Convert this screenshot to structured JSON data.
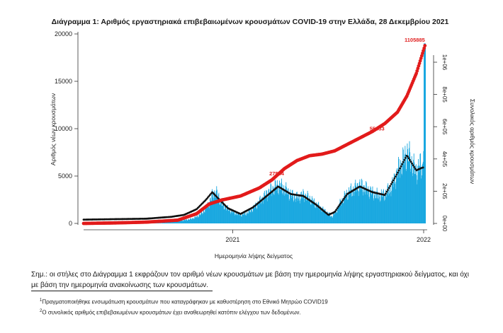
{
  "chart_data": {
    "type": "bar+line",
    "title": "Διάγραμμα 1: Αριθμός εργαστηριακά επιβεβαιωμένων κρουσμάτων COVID-19 στην Ελλάδα, 28 Δεκεμβρίου 2021",
    "xlabel": "Ημερομηνία λήψης δείγματος",
    "ylabel_left": "Αριθμός νέων κρουσμάτων",
    "ylabel_right": "Συνολικός αριθμός κρουσμάτων",
    "x_ticks": [
      "2021",
      "2022"
    ],
    "y_left_ticks": [
      "0",
      "5000",
      "10000",
      "15000",
      "20000"
    ],
    "y_left_lim": [
      0,
      20000
    ],
    "y_right_ticks": [
      "0e+00",
      "2e+05",
      "4e+05",
      "6e+05",
      "8e+05",
      "1e+06"
    ],
    "y_right_lim": [
      0,
      1130000
    ],
    "annotations": [
      "27544",
      "55453",
      "1105885"
    ],
    "daily_cases": {
      "color": "#1aa8e0",
      "weekly": [
        {
          "week": 0,
          "value": 0
        },
        {
          "week": 4,
          "value": 2
        },
        {
          "week": 8,
          "value": 10
        },
        {
          "week": 12,
          "value": 20
        },
        {
          "week": 16,
          "value": 15
        },
        {
          "week": 20,
          "value": 20
        },
        {
          "week": 24,
          "value": 30
        },
        {
          "week": 28,
          "value": 150
        },
        {
          "week": 30,
          "value": 250
        },
        {
          "week": 32,
          "value": 350
        },
        {
          "week": 34,
          "value": 450
        },
        {
          "week": 36,
          "value": 700
        },
        {
          "week": 38,
          "value": 1200
        },
        {
          "week": 40,
          "value": 2200
        },
        {
          "week": 41,
          "value": 3000
        },
        {
          "week": 42,
          "value": 3300
        },
        {
          "week": 43,
          "value": 2800
        },
        {
          "week": 44,
          "value": 2000
        },
        {
          "week": 46,
          "value": 1500
        },
        {
          "week": 48,
          "value": 1100
        },
        {
          "week": 50,
          "value": 900
        },
        {
          "week": 52,
          "value": 1100
        },
        {
          "week": 54,
          "value": 1600
        },
        {
          "week": 56,
          "value": 2300
        },
        {
          "week": 58,
          "value": 3000
        },
        {
          "week": 60,
          "value": 3600
        },
        {
          "week": 62,
          "value": 4000
        },
        {
          "week": 64,
          "value": 3600
        },
        {
          "week": 66,
          "value": 3000
        },
        {
          "week": 68,
          "value": 2700
        },
        {
          "week": 70,
          "value": 3000
        },
        {
          "week": 72,
          "value": 2600
        },
        {
          "week": 74,
          "value": 2000
        },
        {
          "week": 76,
          "value": 1500
        },
        {
          "week": 78,
          "value": 1000
        },
        {
          "week": 79,
          "value": 700
        },
        {
          "week": 80,
          "value": 1100
        },
        {
          "week": 82,
          "value": 2300
        },
        {
          "week": 84,
          "value": 3200
        },
        {
          "week": 86,
          "value": 3600
        },
        {
          "week": 88,
          "value": 4000
        },
        {
          "week": 90,
          "value": 3600
        },
        {
          "week": 92,
          "value": 3200
        },
        {
          "week": 94,
          "value": 2900
        },
        {
          "week": 96,
          "value": 3100
        },
        {
          "week": 98,
          "value": 3800
        },
        {
          "week": 100,
          "value": 5500
        },
        {
          "week": 102,
          "value": 6800
        },
        {
          "week": 103,
          "value": 7400
        },
        {
          "week": 104,
          "value": 6800
        },
        {
          "week": 105,
          "value": 6000
        },
        {
          "week": 106,
          "value": 5400
        },
        {
          "week": 107,
          "value": 6200
        },
        {
          "week": 108,
          "value": 5800
        },
        {
          "week": 108.8,
          "value": 19000
        }
      ]
    },
    "daily_smooth_black": {
      "color": "#111111",
      "points": [
        [
          0,
          400
        ],
        [
          10,
          450
        ],
        [
          20,
          500
        ],
        [
          28,
          700
        ],
        [
          32,
          900
        ],
        [
          36,
          1500
        ],
        [
          39,
          2500
        ],
        [
          41,
          3300
        ],
        [
          43,
          2600
        ],
        [
          46,
          1600
        ],
        [
          50,
          1000
        ],
        [
          54,
          1700
        ],
        [
          58,
          2800
        ],
        [
          62,
          3900
        ],
        [
          66,
          3100
        ],
        [
          70,
          2900
        ],
        [
          74,
          2000
        ],
        [
          78,
          900
        ],
        [
          80,
          1200
        ],
        [
          84,
          3100
        ],
        [
          88,
          3900
        ],
        [
          92,
          3300
        ],
        [
          96,
          3000
        ],
        [
          100,
          5300
        ],
        [
          103,
          7200
        ],
        [
          106,
          5600
        ],
        [
          108,
          5900
        ]
      ]
    },
    "cumulative_red": {
      "color": "#e21b1b",
      "points": [
        [
          0,
          0
        ],
        [
          10,
          3000
        ],
        [
          20,
          8000
        ],
        [
          30,
          20000
        ],
        [
          36,
          60000
        ],
        [
          40,
          120000
        ],
        [
          44,
          145000
        ],
        [
          50,
          170000
        ],
        [
          56,
          220000
        ],
        [
          60,
          270000
        ],
        [
          64,
          340000
        ],
        [
          68,
          390000
        ],
        [
          72,
          420000
        ],
        [
          76,
          430000
        ],
        [
          80,
          450000
        ],
        [
          84,
          490000
        ],
        [
          88,
          530000
        ],
        [
          92,
          570000
        ],
        [
          96,
          620000
        ],
        [
          100,
          690000
        ],
        [
          103,
          790000
        ],
        [
          106,
          930000
        ],
        [
          108.8,
          1105885
        ]
      ]
    }
  },
  "note": {
    "line1": "Σημ.: οι στήλες στο Διάγραμμα 1 εκφράζουν τον αριθμό νέων κρουσμάτων με βάση την ημερομηνία λήψης εργαστηριακού δείγματος, και όχι",
    "line2": "με βάση την ημερομηνία ανακοίνωσης των κρουσμάτων."
  },
  "footnotes": [
    {
      "mark": "1",
      "text": "Πραγματοποιήθηκε ενσωμάτωση κρουσμάτων που καταγράφηκαν με καθυστέρηση στο Εθνικό Μητρώο COVID19"
    },
    {
      "mark": "2",
      "text": "Ο συνολικός αριθμός επιβεβαιωμένων κρουσμάτων έχει αναθεωρηθεί κατόπιν ελέγχου των δεδομένων."
    }
  ]
}
